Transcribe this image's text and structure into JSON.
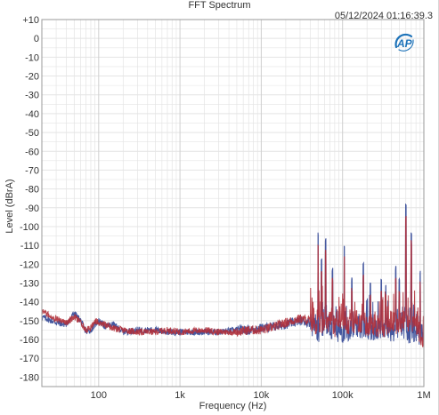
{
  "title": "FFT Spectrum",
  "timestamp": "05/12/2024 01:16:39.3",
  "logo_text": "AP",
  "colors": {
    "series_blue": "#3b4f9a",
    "series_red": "#b0303a",
    "grid": "#e4e4e4",
    "axis": "#9a9a9a",
    "logo": "#1e73b9"
  },
  "chart_data": {
    "type": "line",
    "title": "FFT Spectrum",
    "xlabel": "Frequency (Hz)",
    "ylabel": "Level (dBrA)",
    "x_scale": "log",
    "xlim": [
      20,
      1000000
    ],
    "ylim": [
      -185,
      10
    ],
    "x_tick_values": [
      100,
      1000,
      10000,
      100000,
      1000000
    ],
    "x_tick_labels": [
      "100",
      "1k",
      "10k",
      "100k",
      "1M"
    ],
    "y_tick_values": [
      10,
      0,
      -10,
      -20,
      -30,
      -40,
      -50,
      -60,
      -70,
      -80,
      -90,
      -100,
      -110,
      -120,
      -130,
      -140,
      -150,
      -160,
      -170,
      -180
    ],
    "y_tick_labels": [
      "+10",
      "0",
      "-10",
      "-20",
      "-30",
      "-40",
      "-50",
      "-60",
      "-70",
      "-80",
      "-90",
      "-100",
      "-110",
      "-120",
      "-130",
      "-140",
      "-150",
      "-160",
      "-170",
      "-180"
    ],
    "grid": true,
    "legend": "none",
    "series": [
      {
        "color": "#3b4f9a",
        "x": [
          20,
          30,
          40,
          50,
          60,
          70,
          80,
          90,
          100,
          120,
          150,
          200,
          300,
          500,
          700,
          1000,
          2000,
          3000,
          5000,
          7000,
          10000,
          15000,
          20000,
          30000,
          40000,
          50000,
          60000,
          70000,
          80000,
          100000,
          120000,
          150000,
          200000,
          250000,
          300000,
          400000,
          500000,
          600000,
          700000,
          800000,
          1000000
        ],
        "y": [
          -148,
          -151,
          -152,
          -146,
          -150,
          -156,
          -155,
          -152,
          -150,
          -153,
          -152,
          -156,
          -155,
          -155,
          -156,
          -156,
          -156,
          -156,
          -155,
          -155,
          -154,
          -153,
          -152,
          -150,
          -151,
          -156,
          -152,
          -154,
          -155,
          -156,
          -155,
          -153,
          -154,
          -155,
          -154,
          -156,
          -153,
          -154,
          -158,
          -156,
          -158
        ]
      },
      {
        "color": "#b0303a",
        "x": [
          20,
          30,
          40,
          50,
          60,
          70,
          80,
          90,
          100,
          120,
          150,
          200,
          300,
          500,
          700,
          1000,
          2000,
          3000,
          5000,
          7000,
          10000,
          15000,
          20000,
          30000,
          40000,
          50000,
          60000,
          70000,
          80000,
          100000,
          120000,
          150000,
          200000,
          250000,
          300000,
          400000,
          500000,
          600000,
          700000,
          800000,
          1000000
        ],
        "y": [
          -145,
          -149,
          -151,
          -148,
          -151,
          -155,
          -154,
          -150,
          -151,
          -152,
          -154,
          -155,
          -156,
          -156,
          -155,
          -156,
          -155,
          -156,
          -156,
          -155,
          -155,
          -153,
          -151,
          -149,
          -150,
          -152,
          -150,
          -150,
          -153,
          -150,
          -152,
          -150,
          -153,
          -152,
          -154,
          -150,
          -152,
          -150,
          -150,
          -152,
          -160
        ]
      }
    ],
    "peaks": [
      {
        "x": 50000,
        "y": -112
      },
      {
        "x": 55000,
        "y": -125
      },
      {
        "x": 62000,
        "y": -115
      },
      {
        "x": 75000,
        "y": -130
      },
      {
        "x": 105000,
        "y": -118
      },
      {
        "x": 130000,
        "y": -135
      },
      {
        "x": 180000,
        "y": -128
      },
      {
        "x": 220000,
        "y": -138
      },
      {
        "x": 300000,
        "y": -135
      },
      {
        "x": 340000,
        "y": -138
      },
      {
        "x": 450000,
        "y": -130
      },
      {
        "x": 500000,
        "y": -136
      },
      {
        "x": 600000,
        "y": -96
      },
      {
        "x": 700000,
        "y": -110
      },
      {
        "x": 900000,
        "y": -132
      }
    ]
  }
}
